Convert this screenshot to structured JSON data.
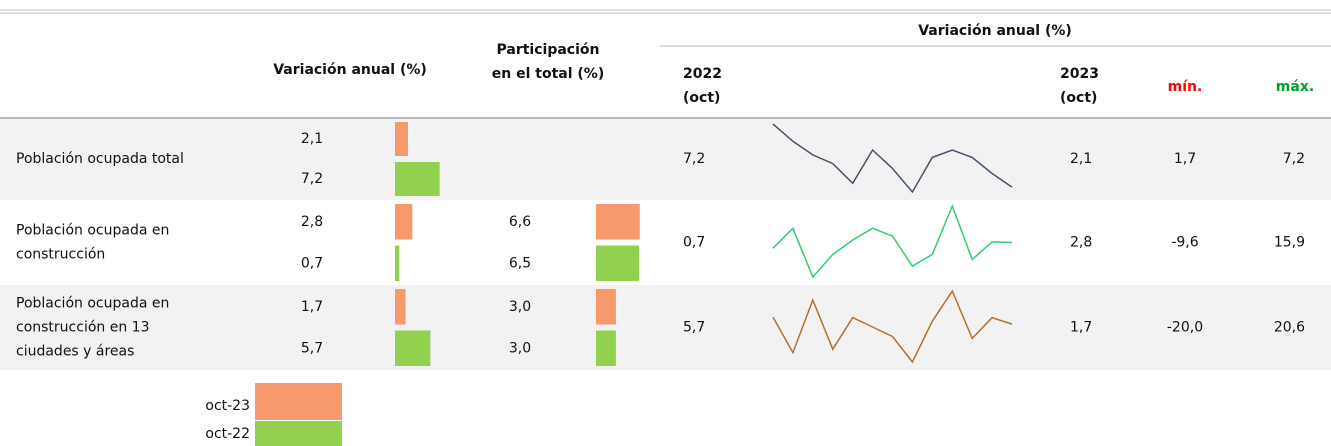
{
  "header": {
    "var_title": "Variación anual (%)",
    "part_title": [
      "Participación",
      "en el total (%)"
    ],
    "spark_title": "Variación anual (%)",
    "col_2022": [
      "2022",
      "(oct)"
    ],
    "col_2023": [
      "2023",
      "(oct)"
    ],
    "min": "mín.",
    "max": "máx.",
    "min_color": "#ff0000",
    "max_color": "#00a02a"
  },
  "legend": [
    {
      "label": "oct-23",
      "color": "#f79a6b"
    },
    {
      "label": "oct-22",
      "color": "#92d050"
    }
  ],
  "rows": [
    {
      "label": [
        "Población ocupada total"
      ],
      "var": [
        2.1,
        7.2
      ],
      "var_labels": [
        "2,1",
        "7,2"
      ],
      "part": [],
      "part_labels": [],
      "v2022": 7.2,
      "v2022_label": "7,2",
      "spark": [
        7.2,
        5.8,
        4.7,
        4.0,
        2.4,
        5.1,
        3.6,
        1.7,
        4.5,
        5.1,
        4.5,
        3.2,
        2.1
      ],
      "spark_color": "#44546a",
      "v2023": 2.1,
      "v2023_label": "2,1",
      "min": 1.7,
      "min_label": "1,7",
      "max": 7.2,
      "max_label": "7,2"
    },
    {
      "label": [
        "Población ocupada en",
        "construcción"
      ],
      "var": [
        2.8,
        0.7
      ],
      "var_labels": [
        "2,8",
        "0,7"
      ],
      "part": [
        6.6,
        6.5
      ],
      "part_labels": [
        "6,6",
        "6,5"
      ],
      "v2022": 0.7,
      "v2022_label": "0,7",
      "spark": [
        0.7,
        7.9,
        -9.6,
        -1.5,
        3.7,
        7.9,
        5.1,
        -5.7,
        -1.5,
        15.9,
        -3.3,
        3.0,
        2.8
      ],
      "spark_color": "#2ecc71",
      "v2023": 2.8,
      "v2023_label": "2,8",
      "min": -9.6,
      "min_label": "-9,6",
      "max": 15.9,
      "max_label": "15,9"
    },
    {
      "label": [
        "Población ocupada en",
        "construcción en 13",
        "ciudades y áreas"
      ],
      "var": [
        1.7,
        5.7
      ],
      "var_labels": [
        "1,7",
        "5,7"
      ],
      "part": [
        3.0,
        3.0
      ],
      "part_labels": [
        "3,0",
        "3,0"
      ],
      "v2022": 5.7,
      "v2022_label": "5,7",
      "spark": [
        5.7,
        -14.6,
        15.4,
        -12.7,
        5.4,
        0.0,
        -5.4,
        -20.0,
        3.3,
        20.6,
        -6.5,
        5.4,
        1.7
      ],
      "spark_color": "#b5702f",
      "v2023": 1.7,
      "v2023_label": "1,7",
      "min": -20.0,
      "min_label": "-20,0",
      "max": 20.6,
      "max_label": "20,6"
    }
  ]
}
